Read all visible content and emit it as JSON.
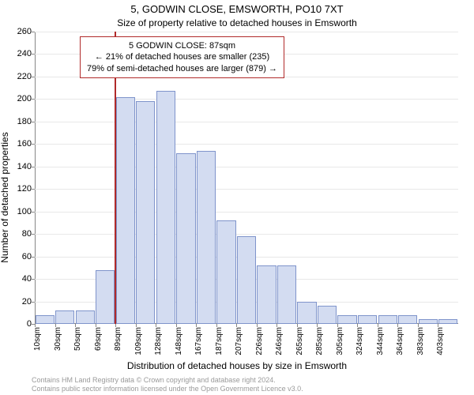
{
  "header": {
    "title": "5, GODWIN CLOSE, EMSWORTH, PO10 7XT",
    "subtitle": "Size of property relative to detached houses in Emsworth"
  },
  "axes": {
    "ylabel": "Number of detached properties",
    "xlabel": "Distribution of detached houses by size in Emsworth"
  },
  "credits": {
    "line1": "Contains HM Land Registry data © Crown copyright and database right 2024.",
    "line2": "Contains public sector information licensed under the Open Government Licence v3.0."
  },
  "tooltip": {
    "line1": "5 GODWIN CLOSE: 87sqm",
    "line2": "← 21% of detached houses are smaller (235)",
    "line3": "79% of semi-detached houses are larger (879) →"
  },
  "chart": {
    "type": "histogram",
    "background_color": "#ffffff",
    "axis_color": "#878787",
    "grid_color": "#e8e8e8",
    "bar_fill": "#d3dcf1",
    "bar_border": "#7f94cb",
    "refline_color": "#b02a2a",
    "tooltip_border": "#b02a2a",
    "label_color": "#000000",
    "font_family": "Arial",
    "title_fontsize": 13,
    "subtitle_fontsize": 12,
    "label_fontsize": 12,
    "tick_fontsize": 11,
    "xtick_fontsize": 10,
    "ylim": [
      0,
      260
    ],
    "ytick_step": 20,
    "x_domain_min": 10,
    "x_domain_max": 413,
    "x_bin_width": 19.6,
    "bar_gap_ratio": 0.05,
    "x_tick_labels": [
      "10sqm",
      "30sqm",
      "50sqm",
      "69sqm",
      "89sqm",
      "109sqm",
      "128sqm",
      "148sqm",
      "167sqm",
      "187sqm",
      "207sqm",
      "226sqm",
      "246sqm",
      "265sqm",
      "285sqm",
      "305sqm",
      "324sqm",
      "344sqm",
      "364sqm",
      "383sqm",
      "403sqm"
    ],
    "values": [
      8,
      12,
      12,
      48,
      202,
      198,
      207,
      152,
      154,
      92,
      78,
      52,
      52,
      20,
      16,
      8,
      8,
      8,
      8,
      4,
      4
    ],
    "refline_x": 87,
    "tooltip_left_bin": 2
  }
}
